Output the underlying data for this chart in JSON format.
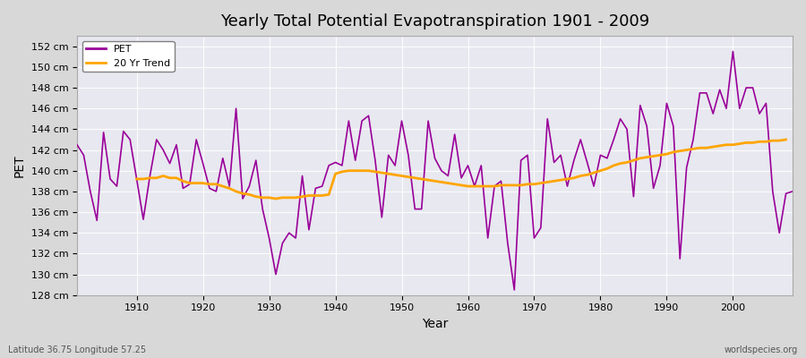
{
  "title": "Yearly Total Potential Evapotranspiration 1901 - 2009",
  "xlabel": "Year",
  "ylabel": "PET",
  "subtitle_left": "Latitude 36.75 Longitude 57.25",
  "subtitle_right": "worldspecies.org",
  "pet_color": "#990099",
  "trend_color": "#FFA500",
  "background_color": "#e8e8e8",
  "plot_bg_color": "#f0f0f0",
  "ylim": [
    128,
    153
  ],
  "xlim": [
    1901,
    2009
  ],
  "ytick_labels": [
    "128 cm",
    "130 cm",
    "132 cm",
    "134 cm",
    "136 cm",
    "138 cm",
    "140 cm",
    "142 cm",
    "144 cm",
    "146 cm",
    "148 cm",
    "150 cm",
    "152 cm"
  ],
  "ytick_values": [
    128,
    130,
    132,
    134,
    136,
    138,
    140,
    142,
    144,
    146,
    148,
    150,
    152
  ],
  "years": [
    1901,
    1902,
    1903,
    1904,
    1905,
    1906,
    1907,
    1908,
    1909,
    1910,
    1911,
    1912,
    1913,
    1914,
    1915,
    1916,
    1917,
    1918,
    1919,
    1920,
    1921,
    1922,
    1923,
    1924,
    1925,
    1926,
    1927,
    1928,
    1929,
    1930,
    1931,
    1932,
    1933,
    1934,
    1935,
    1936,
    1937,
    1938,
    1939,
    1940,
    1941,
    1942,
    1943,
    1944,
    1945,
    1946,
    1947,
    1948,
    1949,
    1950,
    1951,
    1952,
    1953,
    1954,
    1955,
    1956,
    1957,
    1958,
    1959,
    1960,
    1961,
    1962,
    1963,
    1964,
    1965,
    1966,
    1967,
    1968,
    1969,
    1970,
    1971,
    1972,
    1973,
    1974,
    1975,
    1976,
    1977,
    1978,
    1979,
    1980,
    1981,
    1982,
    1983,
    1984,
    1985,
    1986,
    1987,
    1988,
    1989,
    1990,
    1991,
    1992,
    1993,
    1994,
    1995,
    1996,
    1997,
    1998,
    1999,
    2000,
    2001,
    2002,
    2003,
    2004,
    2005,
    2006,
    2007,
    2008,
    2009
  ],
  "pet_values": [
    142.5,
    141.5,
    138.0,
    135.2,
    143.7,
    139.2,
    138.5,
    143.8,
    143.0,
    139.2,
    135.3,
    139.5,
    143.0,
    142.0,
    140.7,
    142.5,
    138.3,
    138.7,
    143.0,
    140.7,
    138.3,
    138.0,
    141.2,
    138.5,
    146.0,
    137.3,
    138.5,
    141.0,
    136.3,
    133.5,
    130.0,
    133.0,
    134.0,
    133.5,
    139.5,
    134.3,
    138.3,
    138.5,
    140.5,
    140.8,
    140.5,
    144.8,
    141.0,
    144.8,
    145.3,
    141.0,
    135.5,
    141.5,
    140.5,
    144.8,
    141.5,
    136.3,
    136.3,
    144.8,
    141.2,
    140.0,
    139.5,
    143.5,
    139.3,
    140.5,
    138.5,
    140.5,
    133.5,
    138.5,
    139.0,
    133.0,
    128.5,
    141.0,
    141.5,
    133.5,
    134.5,
    145.0,
    140.8,
    141.5,
    138.5,
    141.0,
    143.0,
    140.8,
    138.5,
    141.5,
    141.2,
    143.0,
    145.0,
    144.0,
    137.5,
    146.3,
    144.3,
    138.3,
    140.5,
    146.5,
    144.3,
    131.5,
    140.3,
    143.0,
    147.5,
    147.5,
    145.5,
    147.8,
    146.0,
    151.5,
    146.0,
    148.0,
    148.0,
    145.5,
    146.5,
    138.0,
    134.0,
    137.8,
    138.0
  ],
  "trend_values": [
    null,
    null,
    null,
    null,
    null,
    null,
    null,
    null,
    null,
    139.2,
    139.2,
    139.3,
    139.3,
    139.5,
    139.3,
    139.3,
    139.0,
    138.8,
    138.8,
    138.8,
    138.7,
    138.7,
    138.5,
    138.3,
    138.0,
    137.8,
    137.7,
    137.5,
    137.4,
    137.4,
    137.3,
    137.4,
    137.4,
    137.4,
    137.5,
    137.6,
    137.6,
    137.6,
    137.7,
    139.7,
    139.9,
    140.0,
    140.0,
    140.0,
    140.0,
    139.9,
    139.8,
    139.7,
    139.6,
    139.5,
    139.4,
    139.3,
    139.2,
    139.1,
    139.0,
    138.9,
    138.8,
    138.7,
    138.6,
    138.5,
    138.5,
    138.5,
    138.5,
    138.5,
    138.6,
    138.6,
    138.6,
    138.6,
    138.7,
    138.7,
    138.8,
    138.9,
    139.0,
    139.1,
    139.2,
    139.3,
    139.5,
    139.6,
    139.8,
    140.0,
    140.2,
    140.5,
    140.7,
    140.8,
    141.0,
    141.2,
    141.3,
    141.4,
    141.5,
    141.6,
    141.8,
    141.9,
    142.0,
    142.1,
    142.2,
    142.2,
    142.3,
    142.4,
    142.5,
    142.5,
    142.6,
    142.7,
    142.7,
    142.8,
    142.8,
    142.9,
    142.9,
    143.0
  ]
}
